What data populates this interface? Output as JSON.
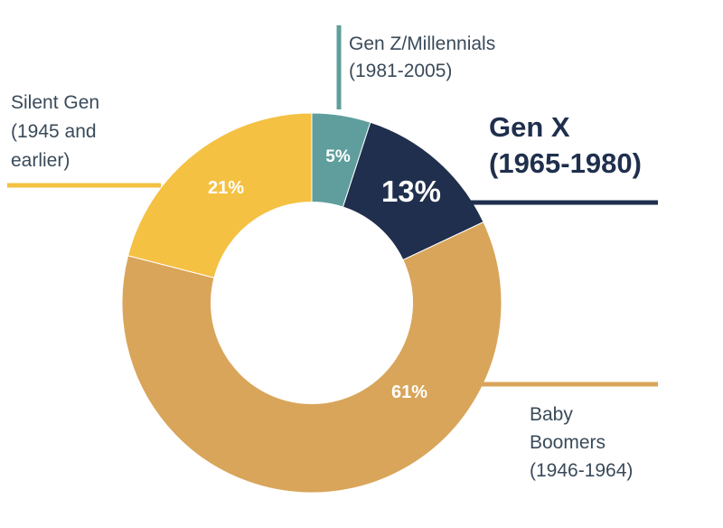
{
  "chart_data": {
    "type": "pie",
    "donut": true,
    "start_angle_deg": 0,
    "direction": "clockwise",
    "slices": [
      {
        "key": "genz",
        "label_lines": [
          "Gen Z/Millennials",
          "(1981-2005)"
        ],
        "value": 5,
        "value_label": "5%",
        "color": "#5f9e9c",
        "emphasis": false
      },
      {
        "key": "genx",
        "label_lines": [
          "Gen X",
          "(1965-1980)"
        ],
        "value": 13,
        "value_label": "13%",
        "color": "#1f2f4d",
        "emphasis": true
      },
      {
        "key": "boomers",
        "label_lines": [
          "Baby",
          "Boomers",
          "(1946-1964)"
        ],
        "value": 61,
        "value_label": "61%",
        "color": "#d9a55a",
        "emphasis": false
      },
      {
        "key": "silent",
        "label_lines": [
          "Silent Gen",
          "(1945 and",
          "earlier)"
        ],
        "value": 21,
        "value_label": "21%",
        "color": "#f4c143",
        "emphasis": false
      }
    ]
  }
}
